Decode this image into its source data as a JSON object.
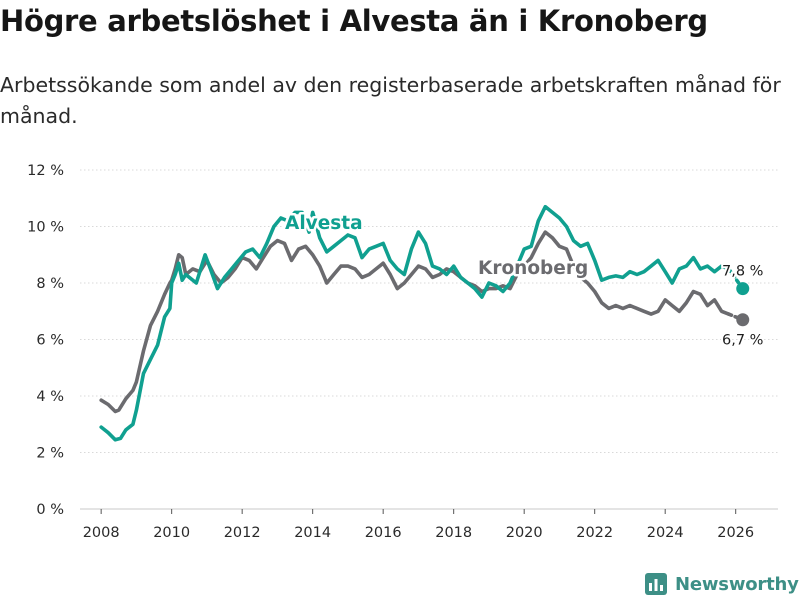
{
  "page": {
    "title": "Högre arbetslöshet i Alvesta än i Kronoberg",
    "subtitle": "Arbetssökande som andel av den registerbaserade arbetskraften månad för månad."
  },
  "brand": {
    "name": "Newsworthy",
    "icon": "newsworthy-logo-icon",
    "color": "#3d8f86"
  },
  "chart_data": {
    "type": "line",
    "title": "Högre arbetslöshet i Alvesta än i Kronoberg",
    "subtitle": "Arbetssökande som andel av den registerbaserade arbetskraften månad för månad.",
    "xlabel": "",
    "ylabel": "",
    "xlim": [
      2007.4,
      2027.2
    ],
    "ylim": [
      0,
      12
    ],
    "x_ticks": [
      2008,
      2010,
      2012,
      2014,
      2016,
      2018,
      2020,
      2022,
      2024,
      2026
    ],
    "x_tick_labels": [
      "2008",
      "2010",
      "2012",
      "2014",
      "2016",
      "2018",
      "2020",
      "2022",
      "2024",
      "2026"
    ],
    "y_ticks": [
      0,
      2,
      4,
      6,
      8,
      10,
      12
    ],
    "y_tick_labels": [
      "0 %",
      "2 %",
      "4 %",
      "6 %",
      "8 %",
      "10 %",
      "12 %"
    ],
    "grid": "horizontal",
    "series": [
      {
        "name": "Alvesta",
        "label": "Alvesta",
        "color": "#10a090",
        "last_value_label": "7,8 %",
        "points": [
          [
            2008.0,
            2.9
          ],
          [
            2008.2,
            2.7
          ],
          [
            2008.4,
            2.45
          ],
          [
            2008.55,
            2.5
          ],
          [
            2008.7,
            2.8
          ],
          [
            2008.9,
            3.0
          ],
          [
            2009.0,
            3.5
          ],
          [
            2009.2,
            4.8
          ],
          [
            2009.4,
            5.3
          ],
          [
            2009.6,
            5.8
          ],
          [
            2009.8,
            6.8
          ],
          [
            2009.95,
            7.1
          ],
          [
            2010.0,
            8.0
          ],
          [
            2010.1,
            8.3
          ],
          [
            2010.2,
            8.7
          ],
          [
            2010.3,
            8.1
          ],
          [
            2010.4,
            8.3
          ],
          [
            2010.5,
            8.2
          ],
          [
            2010.7,
            8.0
          ],
          [
            2010.85,
            8.6
          ],
          [
            2010.95,
            9.0
          ],
          [
            2011.1,
            8.5
          ],
          [
            2011.3,
            7.8
          ],
          [
            2011.5,
            8.2
          ],
          [
            2011.7,
            8.5
          ],
          [
            2011.9,
            8.8
          ],
          [
            2012.1,
            9.1
          ],
          [
            2012.3,
            9.2
          ],
          [
            2012.5,
            8.9
          ],
          [
            2012.7,
            9.4
          ],
          [
            2012.9,
            10.0
          ],
          [
            2013.1,
            10.3
          ],
          [
            2013.3,
            10.2
          ],
          [
            2013.5,
            10.5
          ],
          [
            2013.7,
            10.5
          ],
          [
            2013.9,
            9.8
          ],
          [
            2014.0,
            10.5
          ],
          [
            2014.2,
            9.6
          ],
          [
            2014.4,
            9.1
          ],
          [
            2014.6,
            9.3
          ],
          [
            2014.8,
            9.5
          ],
          [
            2015.0,
            9.7
          ],
          [
            2015.2,
            9.6
          ],
          [
            2015.4,
            8.9
          ],
          [
            2015.6,
            9.2
          ],
          [
            2015.8,
            9.3
          ],
          [
            2016.0,
            9.4
          ],
          [
            2016.2,
            8.8
          ],
          [
            2016.4,
            8.5
          ],
          [
            2016.6,
            8.3
          ],
          [
            2016.8,
            9.2
          ],
          [
            2017.0,
            9.8
          ],
          [
            2017.2,
            9.4
          ],
          [
            2017.4,
            8.6
          ],
          [
            2017.6,
            8.5
          ],
          [
            2017.8,
            8.3
          ],
          [
            2018.0,
            8.6
          ],
          [
            2018.2,
            8.2
          ],
          [
            2018.4,
            8.0
          ],
          [
            2018.6,
            7.8
          ],
          [
            2018.8,
            7.5
          ],
          [
            2019.0,
            8.0
          ],
          [
            2019.2,
            7.9
          ],
          [
            2019.4,
            7.7
          ],
          [
            2019.6,
            8.0
          ],
          [
            2019.8,
            8.6
          ],
          [
            2020.0,
            9.2
          ],
          [
            2020.2,
            9.3
          ],
          [
            2020.4,
            10.2
          ],
          [
            2020.6,
            10.7
          ],
          [
            2020.8,
            10.5
          ],
          [
            2021.0,
            10.3
          ],
          [
            2021.2,
            10.0
          ],
          [
            2021.4,
            9.5
          ],
          [
            2021.6,
            9.3
          ],
          [
            2021.8,
            9.4
          ],
          [
            2022.0,
            8.8
          ],
          [
            2022.2,
            8.1
          ],
          [
            2022.4,
            8.2
          ],
          [
            2022.6,
            8.25
          ],
          [
            2022.8,
            8.2
          ],
          [
            2023.0,
            8.4
          ],
          [
            2023.2,
            8.3
          ],
          [
            2023.4,
            8.4
          ],
          [
            2023.6,
            8.6
          ],
          [
            2023.8,
            8.8
          ],
          [
            2024.0,
            8.4
          ],
          [
            2024.2,
            8.0
          ],
          [
            2024.4,
            8.5
          ],
          [
            2024.6,
            8.6
          ],
          [
            2024.8,
            8.9
          ],
          [
            2025.0,
            8.5
          ],
          [
            2025.2,
            8.6
          ],
          [
            2025.4,
            8.4
          ],
          [
            2025.6,
            8.6
          ],
          [
            2025.8,
            8.5
          ],
          [
            2026.2,
            7.8
          ]
        ]
      },
      {
        "name": "Kronoberg",
        "label": "Kronoberg",
        "color": "#6b6b6f",
        "last_value_label": "6,7 %",
        "points": [
          [
            2008.0,
            3.85
          ],
          [
            2008.2,
            3.7
          ],
          [
            2008.4,
            3.45
          ],
          [
            2008.5,
            3.5
          ],
          [
            2008.7,
            3.9
          ],
          [
            2008.9,
            4.2
          ],
          [
            2009.0,
            4.5
          ],
          [
            2009.2,
            5.6
          ],
          [
            2009.4,
            6.5
          ],
          [
            2009.6,
            7.0
          ],
          [
            2009.8,
            7.6
          ],
          [
            2009.95,
            8.0
          ],
          [
            2010.0,
            8.1
          ],
          [
            2010.1,
            8.5
          ],
          [
            2010.2,
            9.0
          ],
          [
            2010.3,
            8.9
          ],
          [
            2010.4,
            8.3
          ],
          [
            2010.6,
            8.5
          ],
          [
            2010.8,
            8.4
          ],
          [
            2011.0,
            8.8
          ],
          [
            2011.2,
            8.3
          ],
          [
            2011.4,
            8.0
          ],
          [
            2011.6,
            8.2
          ],
          [
            2011.8,
            8.5
          ],
          [
            2012.0,
            8.9
          ],
          [
            2012.2,
            8.8
          ],
          [
            2012.4,
            8.5
          ],
          [
            2012.6,
            8.9
          ],
          [
            2012.8,
            9.3
          ],
          [
            2013.0,
            9.5
          ],
          [
            2013.2,
            9.4
          ],
          [
            2013.4,
            8.8
          ],
          [
            2013.6,
            9.2
          ],
          [
            2013.8,
            9.3
          ],
          [
            2014.0,
            9.0
          ],
          [
            2014.2,
            8.6
          ],
          [
            2014.4,
            8.0
          ],
          [
            2014.6,
            8.3
          ],
          [
            2014.8,
            8.6
          ],
          [
            2015.0,
            8.6
          ],
          [
            2015.2,
            8.5
          ],
          [
            2015.4,
            8.2
          ],
          [
            2015.6,
            8.3
          ],
          [
            2015.8,
            8.5
          ],
          [
            2016.0,
            8.7
          ],
          [
            2016.2,
            8.3
          ],
          [
            2016.4,
            7.8
          ],
          [
            2016.6,
            8.0
          ],
          [
            2016.8,
            8.3
          ],
          [
            2017.0,
            8.6
          ],
          [
            2017.2,
            8.5
          ],
          [
            2017.4,
            8.2
          ],
          [
            2017.6,
            8.3
          ],
          [
            2017.8,
            8.5
          ],
          [
            2018.0,
            8.4
          ],
          [
            2018.2,
            8.2
          ],
          [
            2018.4,
            8.0
          ],
          [
            2018.6,
            7.9
          ],
          [
            2018.8,
            7.7
          ],
          [
            2019.0,
            7.8
          ],
          [
            2019.2,
            7.8
          ],
          [
            2019.4,
            7.9
          ],
          [
            2019.6,
            7.8
          ],
          [
            2019.8,
            8.3
          ],
          [
            2020.0,
            8.6
          ],
          [
            2020.2,
            8.9
          ],
          [
            2020.4,
            9.4
          ],
          [
            2020.6,
            9.8
          ],
          [
            2020.8,
            9.6
          ],
          [
            2021.0,
            9.3
          ],
          [
            2021.2,
            9.2
          ],
          [
            2021.4,
            8.6
          ],
          [
            2021.6,
            8.2
          ],
          [
            2021.8,
            8.0
          ],
          [
            2022.0,
            7.7
          ],
          [
            2022.2,
            7.3
          ],
          [
            2022.4,
            7.1
          ],
          [
            2022.6,
            7.2
          ],
          [
            2022.8,
            7.1
          ],
          [
            2023.0,
            7.2
          ],
          [
            2023.2,
            7.1
          ],
          [
            2023.4,
            7.0
          ],
          [
            2023.6,
            6.9
          ],
          [
            2023.8,
            7.0
          ],
          [
            2024.0,
            7.4
          ],
          [
            2024.2,
            7.2
          ],
          [
            2024.4,
            7.0
          ],
          [
            2024.6,
            7.3
          ],
          [
            2024.8,
            7.7
          ],
          [
            2025.0,
            7.6
          ],
          [
            2025.2,
            7.2
          ],
          [
            2025.4,
            7.4
          ],
          [
            2025.6,
            7.0
          ],
          [
            2025.8,
            6.9
          ],
          [
            2026.2,
            6.7
          ]
        ]
      }
    ]
  }
}
